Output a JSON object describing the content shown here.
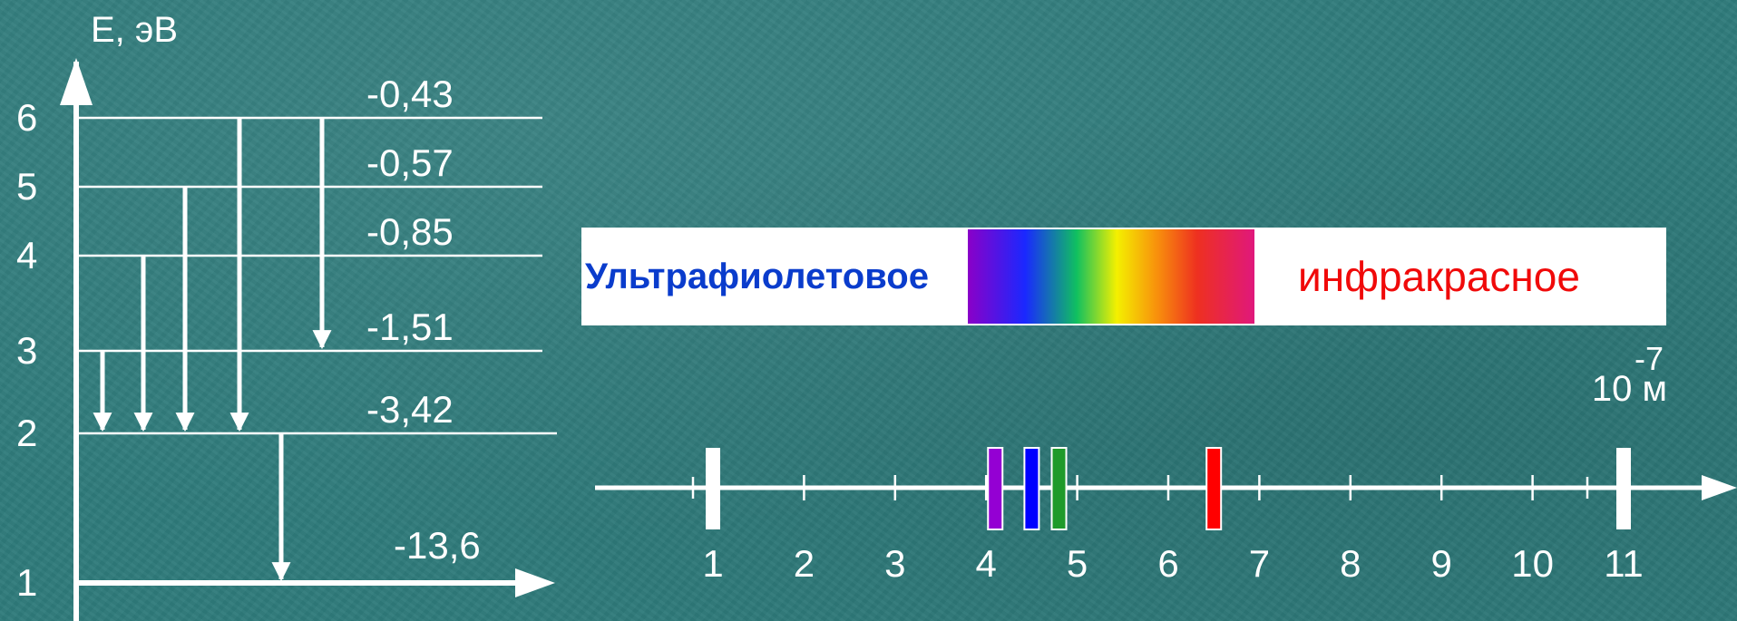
{
  "energy_diagram": {
    "axis_label": "E, эВ",
    "levels": [
      {
        "n": "1",
        "energy": "-13,6",
        "value": -13.6
      },
      {
        "n": "2",
        "energy": "-3,42",
        "value": -3.42
      },
      {
        "n": "3",
        "energy": "-1,51",
        "value": -1.51
      },
      {
        "n": "4",
        "energy": "-0,85",
        "value": -0.85
      },
      {
        "n": "5",
        "energy": "-0,57",
        "value": -0.57
      },
      {
        "n": "6",
        "energy": "-0,43",
        "value": -0.43
      }
    ],
    "transitions": [
      {
        "from": 3,
        "to": 2
      },
      {
        "from": 4,
        "to": 2
      },
      {
        "from": 5,
        "to": 2
      },
      {
        "from": 6,
        "to": 2
      },
      {
        "from": 6,
        "to": 3
      },
      {
        "from": 2,
        "to": 1
      }
    ]
  },
  "spectrum": {
    "uv_label": "Ультрафиолетовое",
    "ir_label": "инфракрасное",
    "colors": {
      "uv_text": "#0a3ccc",
      "ir_text": "#f00a0a"
    }
  },
  "wavelength_axis": {
    "unit_base": "10",
    "unit_exponent": "-7",
    "unit_suffix": "м",
    "tick_labels": [
      "1",
      "2",
      "3",
      "4",
      "5",
      "6",
      "7",
      "8",
      "9",
      "10",
      "11"
    ],
    "lines": [
      {
        "wavelength": 4.1,
        "color": "#9400d3"
      },
      {
        "wavelength": 4.5,
        "color": "#0000ff"
      },
      {
        "wavelength": 4.8,
        "color": "#1f9a2a"
      },
      {
        "wavelength": 6.5,
        "color": "#ff0000"
      }
    ]
  }
}
